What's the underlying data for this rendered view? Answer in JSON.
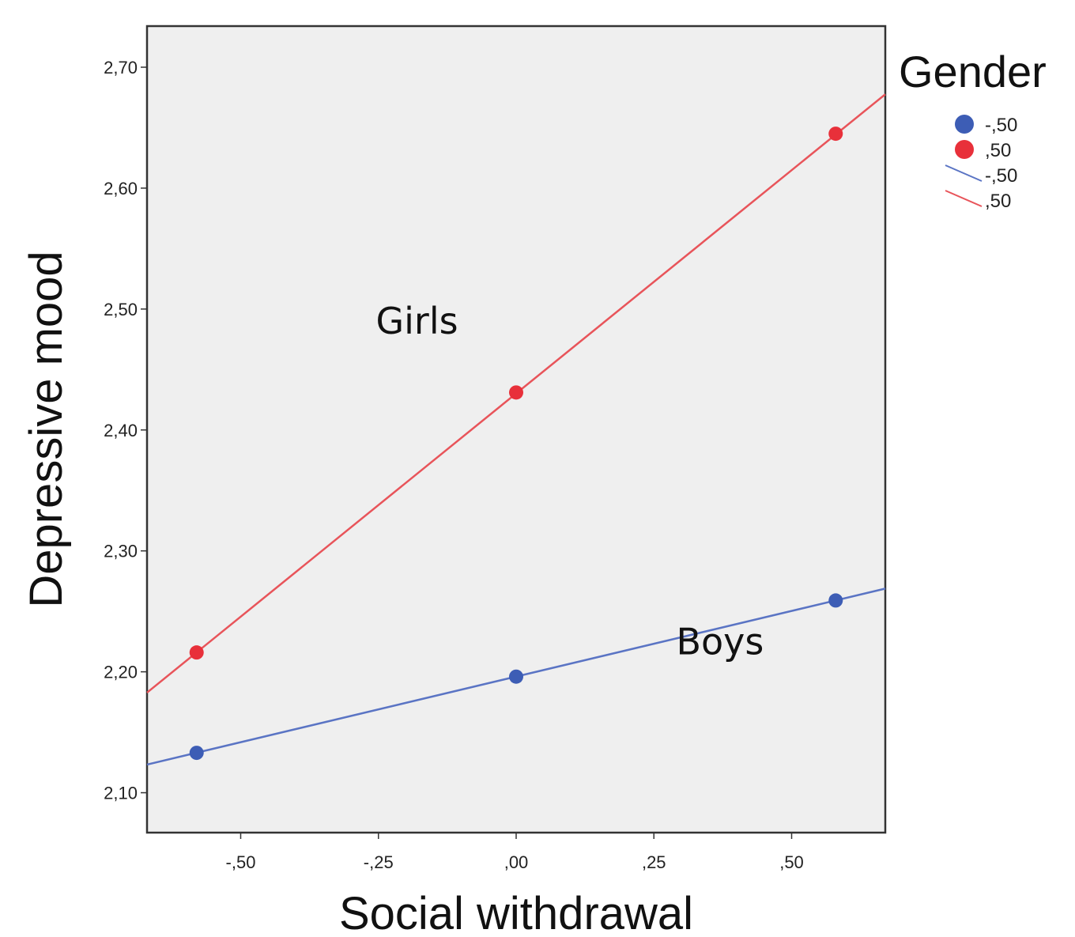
{
  "chart_data": {
    "type": "line",
    "xlabel": "Social withdrawal",
    "ylabel": "Depressive mood",
    "xlim": [
      -0.67,
      0.67
    ],
    "ylim": [
      2.067,
      2.734
    ],
    "x_ticks": [
      -0.5,
      -0.25,
      0.0,
      0.25,
      0.5
    ],
    "x_tick_labels": [
      "-,50",
      "-,25",
      ",00",
      ",25",
      ",50"
    ],
    "y_ticks": [
      2.1,
      2.2,
      2.3,
      2.4,
      2.5,
      2.6,
      2.7
    ],
    "y_tick_labels": [
      "2,10",
      "2,20",
      "2,30",
      "2,40",
      "2,50",
      "2,60",
      "2,70"
    ],
    "grid": false,
    "background": "#efefef",
    "legend": {
      "title": "Gender",
      "placement": "right",
      "entries": [
        {
          "kind": "marker",
          "label": "-,50",
          "color": "#3d5db5"
        },
        {
          "kind": "marker",
          "label": ",50",
          "color": "#e8303a"
        },
        {
          "kind": "line",
          "label": "-,50",
          "color": "#5a74c4"
        },
        {
          "kind": "line",
          "label": ",50",
          "color": "#e8545a"
        }
      ]
    },
    "series": [
      {
        "name": "-,50",
        "color": "#3d5db5",
        "line_color": "#5a74c4",
        "points": [
          [
            -0.58,
            2.133
          ],
          [
            0.0,
            2.196
          ],
          [
            0.58,
            2.259
          ]
        ],
        "fit": [
          [
            -0.67,
            2.1233
          ],
          [
            0.67,
            2.2688
          ]
        ]
      },
      {
        "name": ",50",
        "color": "#e8303a",
        "line_color": "#e8545a",
        "points": [
          [
            -0.58,
            2.216
          ],
          [
            0.0,
            2.431
          ],
          [
            0.58,
            2.645
          ]
        ],
        "fit": [
          [
            -0.67,
            2.1828
          ],
          [
            0.67,
            2.6776
          ]
        ]
      }
    ],
    "annotations": [
      {
        "text": "Girls",
        "x": -0.18,
        "y": 2.49
      },
      {
        "text": "Boys",
        "x": 0.37,
        "y": 2.225
      }
    ]
  }
}
